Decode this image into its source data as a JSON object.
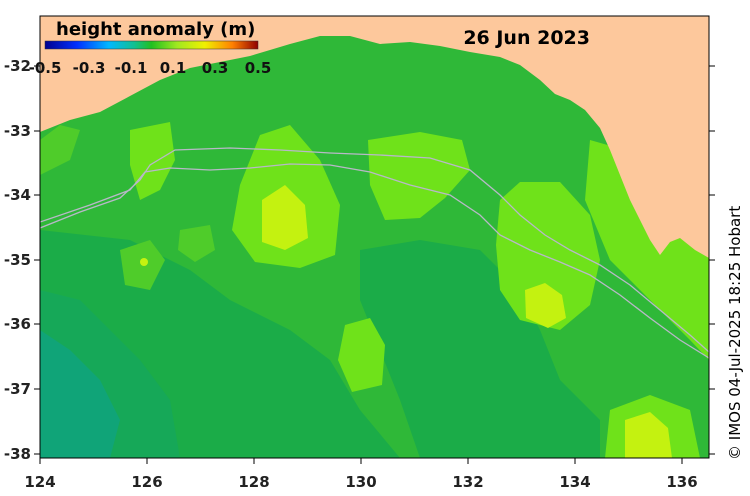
{
  "map": {
    "title": "height anomaly (m)",
    "date": "26 Jun 2023",
    "credit": "© IMOS 04-Jul-2025 18:25 Hobart",
    "x_ticks": [
      "124",
      "126",
      "128",
      "130",
      "132",
      "134",
      "136"
    ],
    "y_ticks": [
      "-32",
      "-33",
      "-34",
      "-35",
      "-36",
      "-37",
      "-38"
    ],
    "colorbar": {
      "ticks": [
        "-0.5",
        "-0.3",
        "-0.1",
        "0.1",
        "0.3",
        "0.5"
      ],
      "min": -0.5,
      "max": 0.5
    },
    "colors": {
      "land": "#fdc89c",
      "ocean_base": "#2fb838",
      "ocean_high": "#6fe21a",
      "ocean_peak": "#c4f210",
      "ocean_low": "#16a858",
      "ocean_lowest": "#10a478",
      "isobath": "#b8b8c8"
    }
  }
}
